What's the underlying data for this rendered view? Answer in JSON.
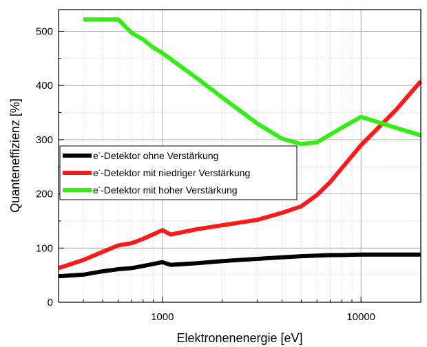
{
  "chart_data": {
    "type": "line",
    "xlabel": "Elektronenenergie [eV]",
    "ylabel": "Quanteneffizienz [%]",
    "x_scale": "log",
    "xlim": [
      300,
      20000
    ],
    "ylim": [
      0,
      540
    ],
    "x_ticks": [
      1000,
      10000
    ],
    "x_tick_labels": [
      "1000",
      "10000"
    ],
    "y_ticks": [
      0,
      100,
      200,
      300,
      400,
      500
    ],
    "y_tick_labels": [
      "0",
      "100",
      "200",
      "300",
      "400",
      "500"
    ],
    "grid": true,
    "legend_position": "center-left",
    "series": [
      {
        "name": "e⁻-Detektor ohne Verstärkung",
        "legend_prefix": "e",
        "legend_sup": "-",
        "legend_rest": "-Detektor ohne Verstärkung",
        "color": "#000000",
        "x": [
          300,
          400,
          500,
          600,
          700,
          800,
          1000,
          1100,
          1500,
          2000,
          3000,
          4000,
          5000,
          6000,
          7000,
          8000,
          10000,
          15000,
          20000
        ],
        "y": [
          48,
          51,
          57,
          61,
          63,
          67,
          74,
          69,
          72,
          76,
          80,
          83,
          85,
          86,
          87,
          87,
          88,
          88,
          88
        ]
      },
      {
        "name": "e⁻-Detektor mit niedriger Verstärkung",
        "legend_prefix": "e",
        "legend_sup": "-",
        "legend_rest": "-Detektor mit niedriger Verstärkung",
        "color": "#ff1a1a",
        "x": [
          300,
          400,
          500,
          600,
          700,
          800,
          1000,
          1100,
          1500,
          2000,
          3000,
          4000,
          5000,
          6000,
          7000,
          10000,
          15000,
          20000
        ],
        "y": [
          63,
          78,
          93,
          105,
          109,
          117,
          133,
          125,
          135,
          142,
          152,
          165,
          177,
          198,
          222,
          290,
          355,
          408
        ]
      },
      {
        "name": "e⁻-Detektor mit hoher Verstärkung",
        "legend_prefix": "e",
        "legend_sup": "-",
        "legend_rest": "-Detektor mit hoher Verstärkung",
        "color": "#33ee11",
        "x": [
          400,
          500,
          600,
          700,
          800,
          900,
          1000,
          1500,
          2000,
          3000,
          4000,
          5000,
          6000,
          8000,
          10000,
          15000,
          20000
        ],
        "y": [
          522,
          522,
          522,
          497,
          485,
          470,
          460,
          413,
          378,
          330,
          302,
          292,
          295,
          322,
          342,
          322,
          308
        ]
      }
    ]
  }
}
